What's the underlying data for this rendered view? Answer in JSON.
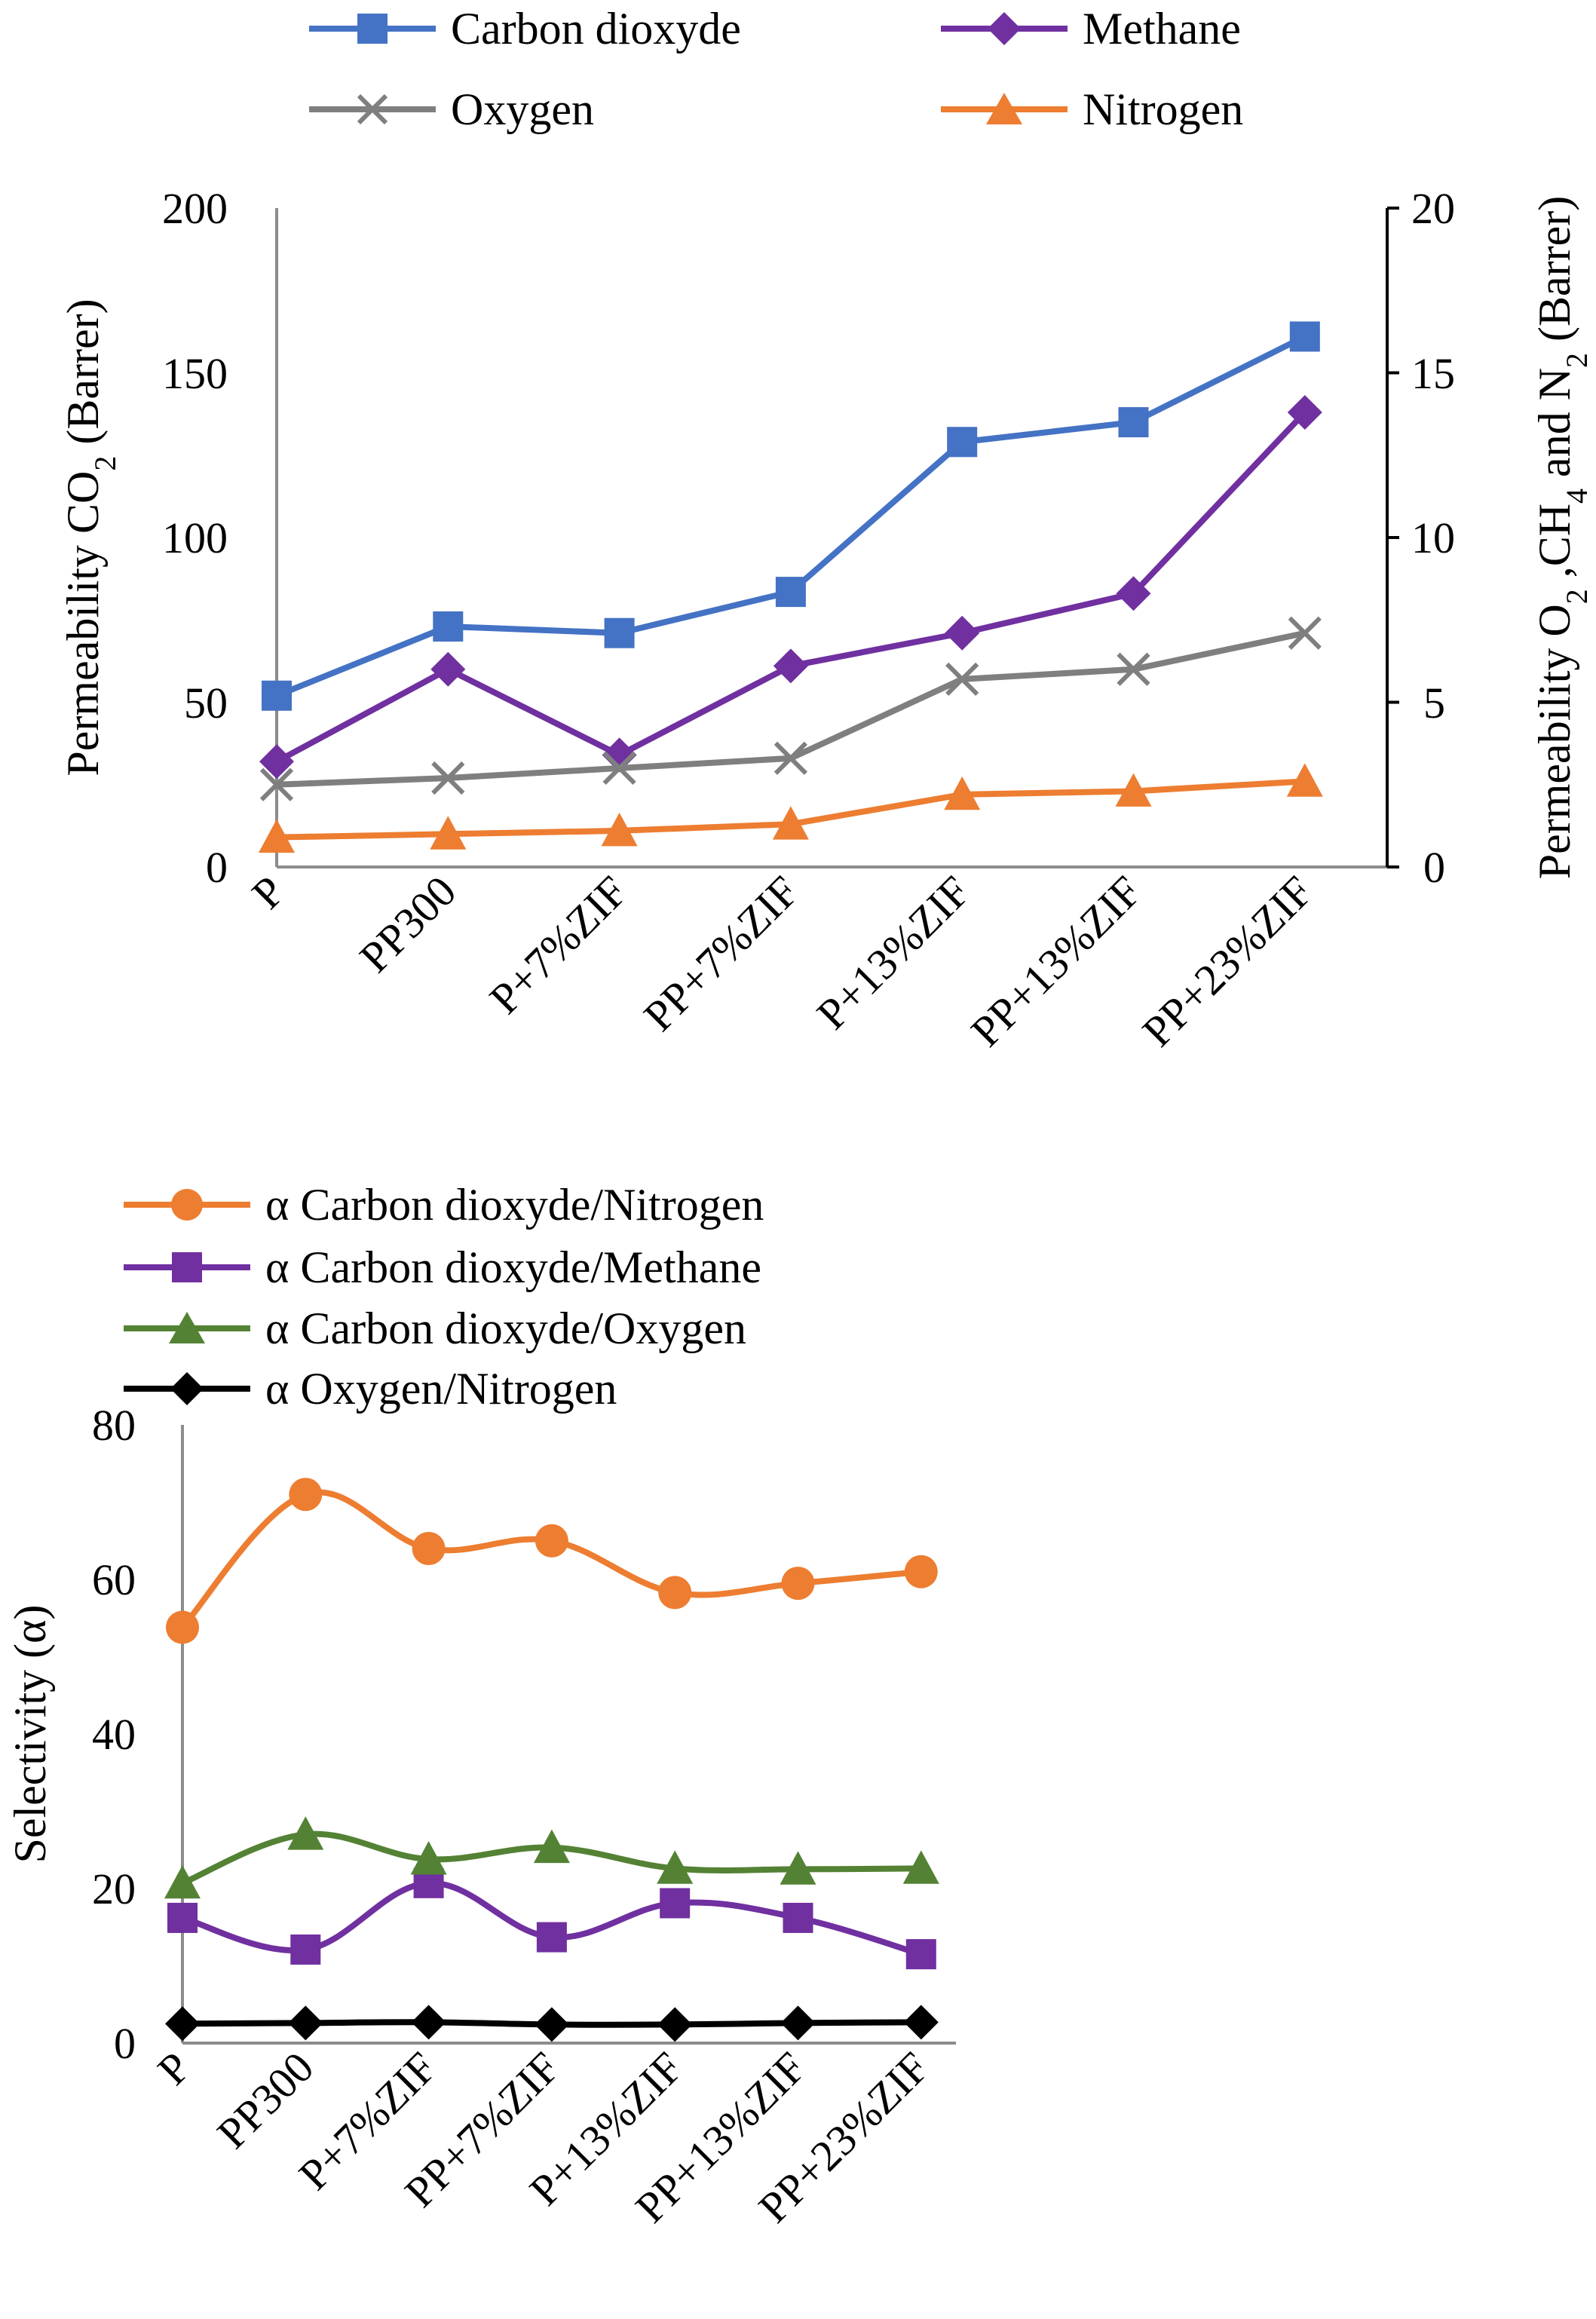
{
  "chart_data": [
    {
      "type": "line",
      "categories": [
        "P",
        "PP300",
        "P+7%ZIF",
        "PP+7%ZIF",
        "P+13%ZIF",
        "PP+13%ZIF",
        "PP+23%ZIF"
      ],
      "title": "",
      "xlabel": "",
      "ylabel": "Permeability  CO2 (Barrer)",
      "ylabel_parts": {
        "prefix": "Permeability  CO",
        "sub": "2",
        "suffix": " (Barrer)"
      },
      "y2label": "Permeability  O2 ,CH4 and N2 (Barrer)",
      "y2label_parts": {
        "a": "Permeability  O",
        "s1": "2",
        "b": " ,CH",
        "s2": "4",
        "c": " and N",
        "s3": "2",
        "d": " (Barrer)"
      },
      "ylim": [
        0,
        200
      ],
      "y2lim": [
        0,
        20
      ],
      "yticks": [
        "0",
        "50",
        "100",
        "150",
        "200"
      ],
      "y2ticks": [
        "0",
        "5",
        "10",
        "15",
        "20"
      ],
      "legend_position": "top",
      "series": [
        {
          "name": "Carbon dioxyde",
          "axis": "left",
          "color": "#4472c4",
          "marker": "square",
          "values": [
            52,
            73,
            71,
            83.5,
            129,
            135,
            161
          ]
        },
        {
          "name": "Methane",
          "axis": "right",
          "color": "#7030a0",
          "marker": "diamond",
          "values": [
            3.2,
            6.0,
            3.4,
            6.1,
            7.1,
            8.3,
            13.8
          ]
        },
        {
          "name": "Oxygen",
          "axis": "right",
          "color": "#7f7f7f",
          "marker": "x",
          "values": [
            2.5,
            2.7,
            3.0,
            3.3,
            5.7,
            6.0,
            7.1
          ]
        },
        {
          "name": "Nitrogen",
          "axis": "right",
          "color": "#ed7d31",
          "marker": "triangle",
          "values": [
            0.9,
            1.0,
            1.1,
            1.3,
            2.2,
            2.3,
            2.6
          ]
        }
      ]
    },
    {
      "type": "line",
      "categories": [
        "P",
        "PP300",
        "P+7%ZIF",
        "PP+7%ZIF",
        "P+13%ZIF",
        "PP+13%ZIF",
        "PP+23%ZIF"
      ],
      "title": "",
      "xlabel": "",
      "ylabel": "Selectivity (α)",
      "ylim": [
        0,
        80
      ],
      "yticks": [
        "0",
        "20",
        "40",
        "60",
        "80"
      ],
      "legend_position": "top",
      "smooth": true,
      "series": [
        {
          "name": "α Carbon dioxyde/Nitrogen",
          "color": "#ed7d31",
          "marker": "circle",
          "values": [
            53.8,
            71,
            64,
            65,
            58.3,
            59.5,
            61
          ]
        },
        {
          "name": "α Carbon dioxyde/Methane",
          "color": "#7030a0",
          "marker": "square",
          "values": [
            16.2,
            12.1,
            20.7,
            13.7,
            18.1,
            16.2,
            11.5
          ]
        },
        {
          "name": "α Carbon dioxyde/Oxygen",
          "color": "#548235",
          "marker": "triangle",
          "values": [
            20.7,
            27,
            23.8,
            25.3,
            22.6,
            22.5,
            22.6
          ]
        },
        {
          "name": "α Oxygen/Nitrogen",
          "color": "#000000",
          "marker": "diamond",
          "values": [
            2.5,
            2.6,
            2.7,
            2.4,
            2.4,
            2.6,
            2.7
          ]
        }
      ]
    }
  ]
}
